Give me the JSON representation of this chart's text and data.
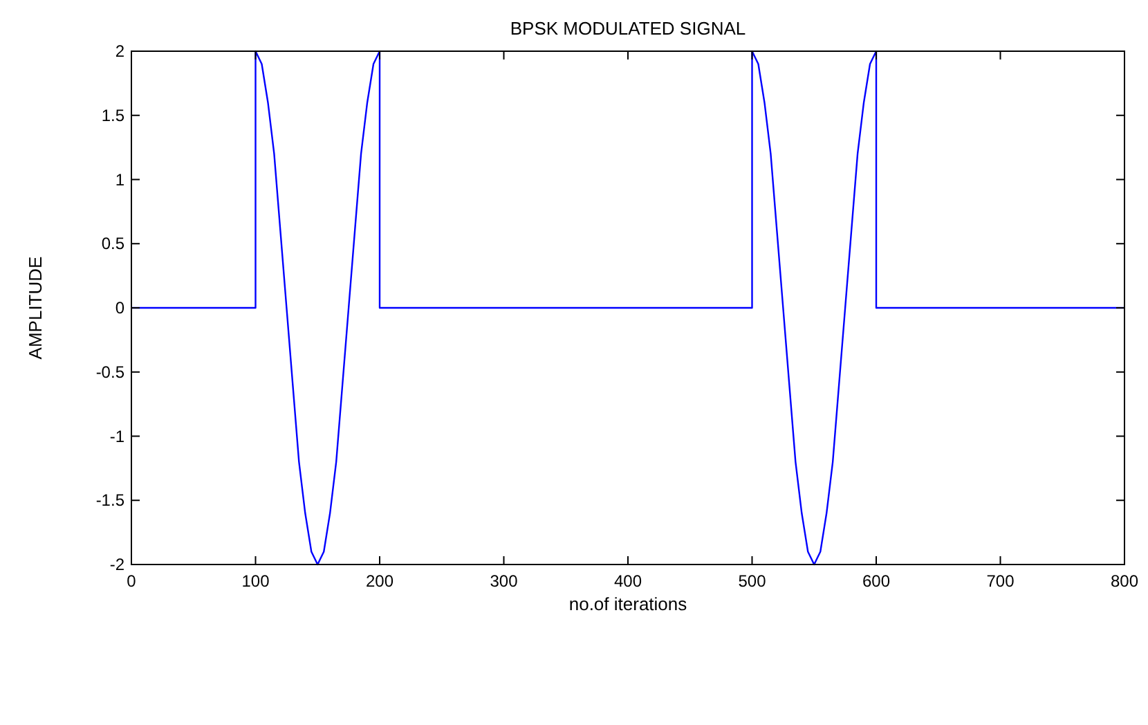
{
  "chart_data": {
    "type": "line",
    "title": "BPSK MODULATED SIGNAL",
    "xlabel": "no.of iterations",
    "ylabel": "AMPLITUDE",
    "xlim": [
      0,
      800
    ],
    "xticks": [
      0,
      100,
      200,
      300,
      400,
      500,
      600,
      700,
      800
    ],
    "ylim": [
      -2,
      2
    ],
    "yticks": [
      -2,
      -1.5,
      -1,
      -0.5,
      0,
      0.5,
      1,
      1.5,
      2
    ],
    "grid": false,
    "marker": "none",
    "line_style": "solid",
    "series": [
      {
        "color": "#0000ff",
        "x": [
          0,
          100,
          100,
          105,
          110,
          115,
          120,
          125,
          130,
          135,
          140,
          145,
          150,
          155,
          160,
          165,
          170,
          175,
          180,
          185,
          190,
          195,
          200,
          200,
          500,
          500,
          505,
          510,
          515,
          520,
          525,
          530,
          535,
          540,
          545,
          550,
          555,
          560,
          565,
          570,
          575,
          580,
          585,
          590,
          595,
          600,
          600,
          800
        ],
        "values": [
          0,
          0,
          2,
          1.9,
          1.6,
          1.2,
          0.6,
          0,
          -0.6,
          -1.2,
          -1.6,
          -1.9,
          -2,
          -1.9,
          -1.6,
          -1.2,
          -0.6,
          0,
          0.6,
          1.2,
          1.6,
          1.9,
          2,
          0,
          0,
          2,
          1.9,
          1.6,
          1.2,
          0.6,
          0,
          -0.6,
          -1.2,
          -1.6,
          -1.9,
          -2,
          -1.9,
          -1.6,
          -1.2,
          -0.6,
          0,
          0.6,
          1.2,
          1.6,
          1.9,
          2,
          0,
          0
        ]
      }
    ]
  }
}
